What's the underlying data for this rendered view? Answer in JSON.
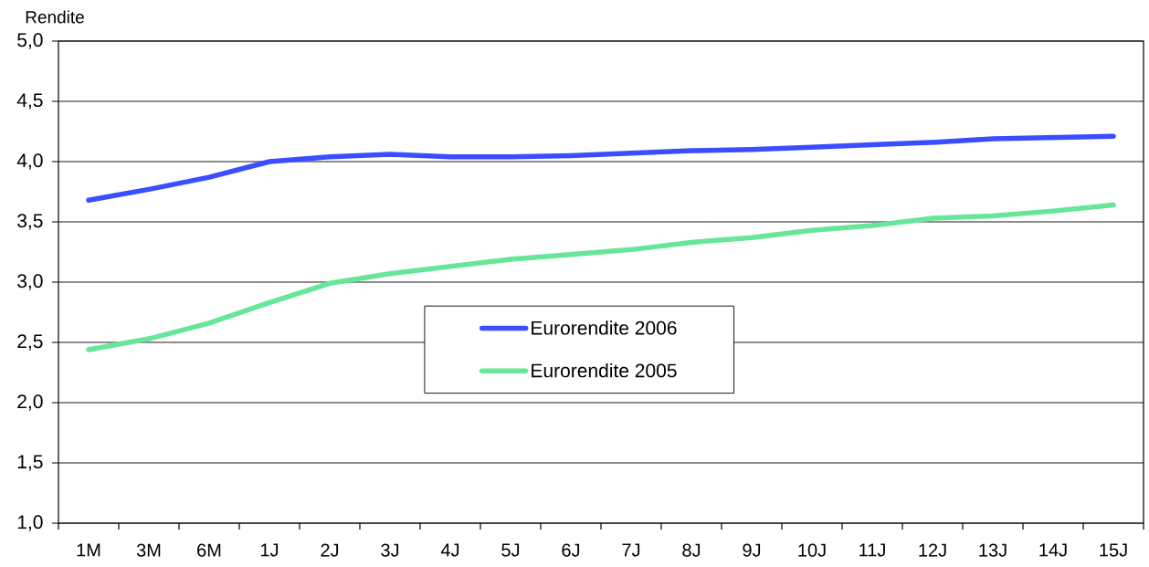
{
  "chart_data": {
    "type": "line",
    "ylabel": "Rendite",
    "categories": [
      "1M",
      "3M",
      "6M",
      "1J",
      "2J",
      "3J",
      "4J",
      "5J",
      "6J",
      "7J",
      "8J",
      "9J",
      "10J",
      "11J",
      "12J",
      "13J",
      "14J",
      "15J"
    ],
    "series": [
      {
        "name": "Eurorendite 2006",
        "color": "#3a4dff",
        "values": [
          3.68,
          3.77,
          3.87,
          4.0,
          4.04,
          4.06,
          4.04,
          4.04,
          4.05,
          4.07,
          4.09,
          4.1,
          4.12,
          4.14,
          4.16,
          4.19,
          4.2,
          4.21
        ]
      },
      {
        "name": "Eurorendite 2005",
        "color": "#66e69a",
        "values": [
          2.44,
          2.53,
          2.66,
          2.83,
          2.99,
          3.07,
          3.13,
          3.19,
          3.23,
          3.27,
          3.33,
          3.37,
          3.43,
          3.47,
          3.53,
          3.55,
          3.59,
          3.64
        ]
      }
    ],
    "ylim": [
      1.0,
      5.0
    ],
    "yticks": [
      {
        "value": 1.0,
        "label": "1,0"
      },
      {
        "value": 1.5,
        "label": "1,5"
      },
      {
        "value": 2.0,
        "label": "2,0"
      },
      {
        "value": 2.5,
        "label": "2,5"
      },
      {
        "value": 3.0,
        "label": "3,0"
      },
      {
        "value": 3.5,
        "label": "3,5"
      },
      {
        "value": 4.0,
        "label": "4,0"
      },
      {
        "value": 4.5,
        "label": "4,5"
      },
      {
        "value": 5.0,
        "label": "5,0"
      }
    ],
    "grid": "y",
    "legend": "center",
    "line_style": "solid"
  }
}
